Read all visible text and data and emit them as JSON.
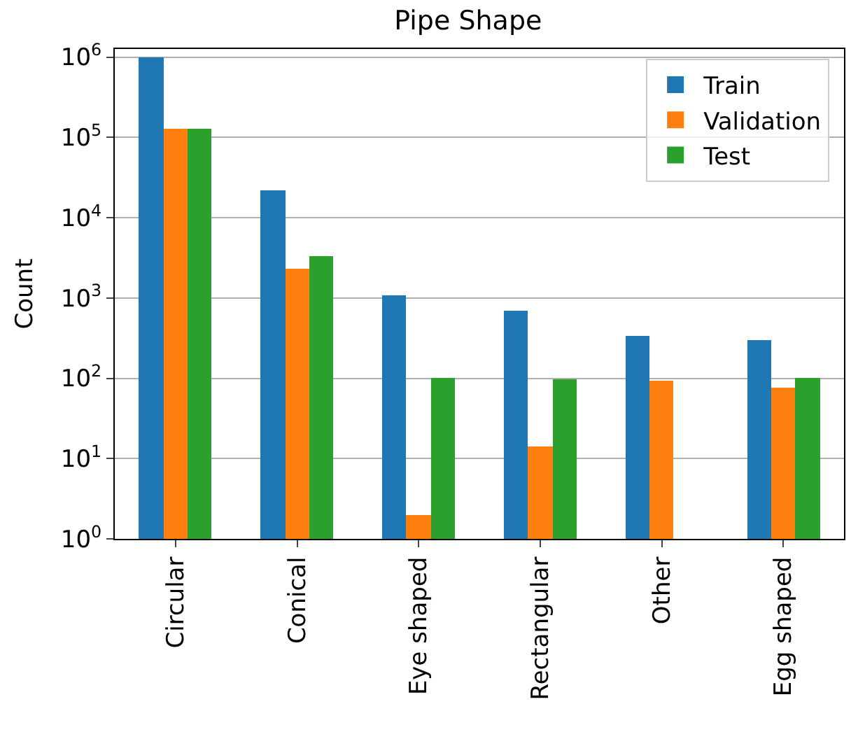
{
  "chart_data": {
    "type": "bar",
    "title": "Pipe Shape",
    "ylabel": "Count",
    "categories": [
      "Circular",
      "Conical",
      "Eye shaped",
      "Rectangular",
      "Other",
      "Egg shaped"
    ],
    "series": [
      {
        "name": "Train",
        "color": "#1f77b4",
        "values": [
          1000000,
          22000,
          1070,
          700,
          340,
          300
        ]
      },
      {
        "name": "Validation",
        "color": "#ff7f0e",
        "values": [
          130000,
          2300,
          2,
          14,
          94,
          76
        ]
      },
      {
        "name": "Test",
        "color": "#2ca02c",
        "values": [
          130000,
          3300,
          100,
          97,
          null,
          100
        ]
      }
    ],
    "log": "y",
    "ylim": [
      1,
      1260000
    ],
    "yticks": [
      {
        "value": 1,
        "label": "10$^{0}$"
      },
      {
        "value": 10,
        "label": "10$^{1}$"
      },
      {
        "value": 100,
        "label": "10$^{2}$"
      },
      {
        "value": 1000,
        "label": "10$^{3}$"
      },
      {
        "value": 10000,
        "label": "10$^{4}$"
      },
      {
        "value": 100000,
        "label": "10$^{5}$"
      },
      {
        "value": 1000000,
        "label": "10$^{6}$"
      }
    ],
    "grid": "y",
    "legend": "top right"
  }
}
